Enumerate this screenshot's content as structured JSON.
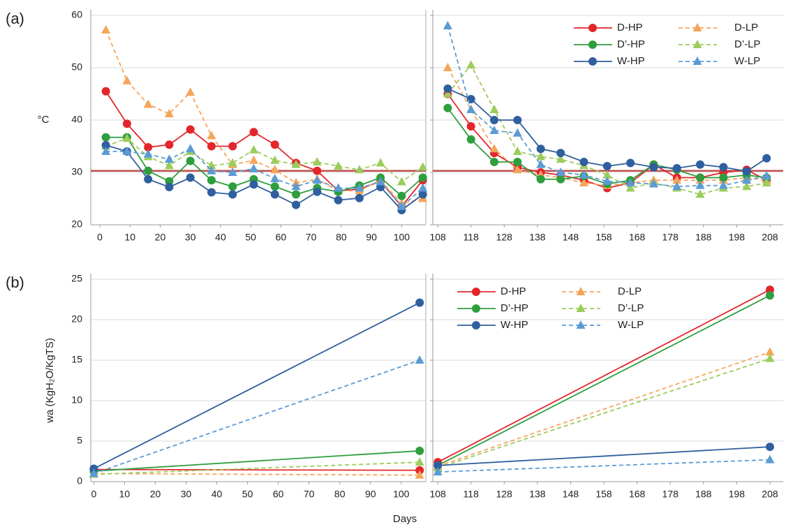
{
  "chart_data": [
    {
      "type": "line",
      "panel_label": "(a)",
      "ylabel": "°C",
      "x": [
        2,
        9,
        16,
        23,
        30,
        37,
        44,
        51,
        58,
        65,
        72,
        79,
        86,
        93,
        100,
        107
      ],
      "xlim": [
        -3,
        108
      ],
      "xticks": [
        0,
        10,
        20,
        30,
        40,
        50,
        60,
        70,
        80,
        90,
        100
      ],
      "ylim": [
        20,
        60
      ],
      "yticks": [
        20,
        30,
        40,
        50,
        60
      ],
      "grid": true,
      "hline": {
        "value": 30.3,
        "color": "#c0504d"
      },
      "series": [
        {
          "color": "#e3262b",
          "marker": "circle",
          "dash": false,
          "values": [
            45.5,
            39.3,
            34.8,
            35.3,
            38.2,
            35,
            35,
            37.7,
            35.3,
            31.8,
            30.3,
            26.5,
            26.8,
            28.3,
            23.5,
            28.5
          ]
        },
        {
          "color": "#f5a55a",
          "marker": "triangle",
          "dash": true,
          "values": [
            57.2,
            47.5,
            43,
            41.2,
            45.3,
            37,
            31.5,
            32.3,
            30.5,
            28,
            28.7,
            26.5,
            26.5,
            28.5,
            24,
            25
          ]
        },
        {
          "color": "#2e9e3e",
          "marker": "circle",
          "dash": false,
          "values": [
            36.7,
            36.7,
            30.3,
            28.3,
            32.2,
            28.5,
            27.3,
            28.7,
            27.3,
            25.8,
            27,
            26.3,
            27.5,
            29,
            25.5,
            29
          ]
        },
        {
          "color": "#9ccc5c",
          "marker": "triangle",
          "dash": true,
          "values": [
            35,
            36.5,
            33,
            31.3,
            34,
            31.3,
            31.8,
            34.3,
            32.3,
            31.5,
            32,
            31.2,
            30.5,
            31.8,
            28.2,
            31
          ]
        },
        {
          "color": "#2f5f9e",
          "marker": "circle",
          "dash": false,
          "values": [
            35.2,
            34,
            28.7,
            27.2,
            29,
            26.2,
            25.8,
            27.7,
            25.8,
            23.8,
            26.3,
            24.7,
            25.1,
            27.2,
            22.8,
            25.8
          ]
        },
        {
          "color": "#5b9bd5",
          "marker": "triangle",
          "dash": true,
          "values": [
            34,
            34,
            33.5,
            32.5,
            34.5,
            30.3,
            30,
            30.7,
            28.8,
            27.3,
            28.5,
            27,
            27,
            28.2,
            23.5,
            27
          ]
        }
      ]
    },
    {
      "type": "line",
      "shared_y": true,
      "legend": "upper right",
      "x": [
        111,
        118,
        125,
        132,
        139,
        145,
        152,
        159,
        166,
        173,
        180,
        187,
        194,
        201,
        207
      ],
      "xlim": [
        106.5,
        212
      ],
      "xticks": [
        108,
        118,
        128,
        138,
        148,
        158,
        168,
        178,
        188,
        198,
        208
      ],
      "hline": {
        "value": 30.3,
        "color": "#c0504d"
      },
      "series": [
        {
          "name": "D-HP",
          "color": "#e3262b",
          "marker": "circle",
          "dash": false,
          "values": [
            45,
            38.8,
            33.7,
            31,
            30,
            29.5,
            28.5,
            27,
            28,
            31.5,
            29,
            29,
            30,
            30.5,
            28.5
          ]
        },
        {
          "name": "D-LP",
          "color": "#f5a55a",
          "marker": "triangle",
          "dash": true,
          "values": [
            50,
            42,
            34.5,
            30.5,
            29.5,
            29,
            28,
            27.5,
            28,
            28.5,
            28.5,
            28.5,
            28.5,
            29,
            28.5
          ]
        },
        {
          "name": "D’-HP",
          "color": "#2e9e3e",
          "marker": "circle",
          "dash": false,
          "values": [
            42.3,
            36.3,
            32,
            32,
            28.7,
            28.7,
            29.3,
            27.8,
            28.5,
            31.5,
            30.5,
            29,
            29,
            29.5,
            29
          ]
        },
        {
          "name": "D’-LP",
          "color": "#9ccc5c",
          "marker": "triangle",
          "dash": true,
          "values": [
            45,
            50.5,
            42,
            34,
            33,
            32.5,
            31.3,
            29.5,
            27,
            28,
            27,
            25.8,
            27,
            27.3,
            28
          ]
        },
        {
          "name": "W-HP",
          "color": "#2f5f9e",
          "marker": "circle",
          "dash": false,
          "values": [
            46,
            44,
            40,
            40,
            34.5,
            33.7,
            32,
            31.2,
            31.8,
            31,
            30.8,
            31.5,
            31,
            30.2,
            32.7
          ]
        },
        {
          "name": "W-LP",
          "color": "#5b9bd5",
          "marker": "triangle",
          "dash": true,
          "values": [
            58,
            42,
            38,
            37.5,
            31.5,
            30,
            29.5,
            28.3,
            28,
            27.8,
            27.3,
            27.5,
            27.5,
            28.5,
            29.3
          ]
        }
      ]
    },
    {
      "type": "line",
      "panel_label": "(b)",
      "ylabel": "wa (KgH₂O/KgTS)",
      "xlabel": "Days",
      "x": [
        0,
        106
      ],
      "xlim": [
        -1,
        108
      ],
      "xticks": [
        0,
        10,
        20,
        30,
        40,
        50,
        60,
        70,
        80,
        90,
        100
      ],
      "ylim": [
        0,
        25
      ],
      "yticks": [
        0,
        5,
        10,
        15,
        20,
        25
      ],
      "grid": true,
      "series": [
        {
          "color": "#e3262b",
          "marker": "circle",
          "dash": false,
          "values": [
            1.5,
            1.4
          ]
        },
        {
          "color": "#f5a55a",
          "marker": "triangle",
          "dash": true,
          "values": [
            1.0,
            0.8
          ]
        },
        {
          "color": "#2e9e3e",
          "marker": "circle",
          "dash": false,
          "values": [
            1.3,
            3.8
          ]
        },
        {
          "color": "#9ccc5c",
          "marker": "triangle",
          "dash": true,
          "values": [
            0.9,
            2.4
          ]
        },
        {
          "color": "#2f5f9e",
          "marker": "circle",
          "dash": false,
          "values": [
            1.6,
            22.1
          ]
        },
        {
          "color": "#5b9bd5",
          "marker": "triangle",
          "dash": true,
          "values": [
            1.0,
            15.0
          ]
        }
      ]
    },
    {
      "type": "line",
      "shared_y": true,
      "legend": "upper left",
      "x": [
        108,
        208
      ],
      "xlim": [
        106.5,
        212
      ],
      "xticks": [
        108,
        118,
        128,
        138,
        148,
        158,
        168,
        178,
        188,
        198,
        208
      ],
      "series": [
        {
          "name": "D-HP",
          "color": "#e3262b",
          "marker": "circle",
          "dash": false,
          "values": [
            2.4,
            23.7
          ]
        },
        {
          "name": "D-LP",
          "color": "#f5a55a",
          "marker": "triangle",
          "dash": true,
          "values": [
            1.9,
            16
          ]
        },
        {
          "name": "D’-HP",
          "color": "#2e9e3e",
          "marker": "circle",
          "dash": false,
          "values": [
            2.0,
            23.0
          ]
        },
        {
          "name": "D’-LP",
          "color": "#9ccc5c",
          "marker": "triangle",
          "dash": true,
          "values": [
            1.7,
            15.2
          ]
        },
        {
          "name": "W-HP",
          "color": "#2f5f9e",
          "marker": "circle",
          "dash": false,
          "values": [
            2.0,
            4.3
          ]
        },
        {
          "name": "W-LP",
          "color": "#5b9bd5",
          "marker": "triangle",
          "dash": true,
          "values": [
            1.2,
            2.7
          ]
        }
      ]
    }
  ]
}
